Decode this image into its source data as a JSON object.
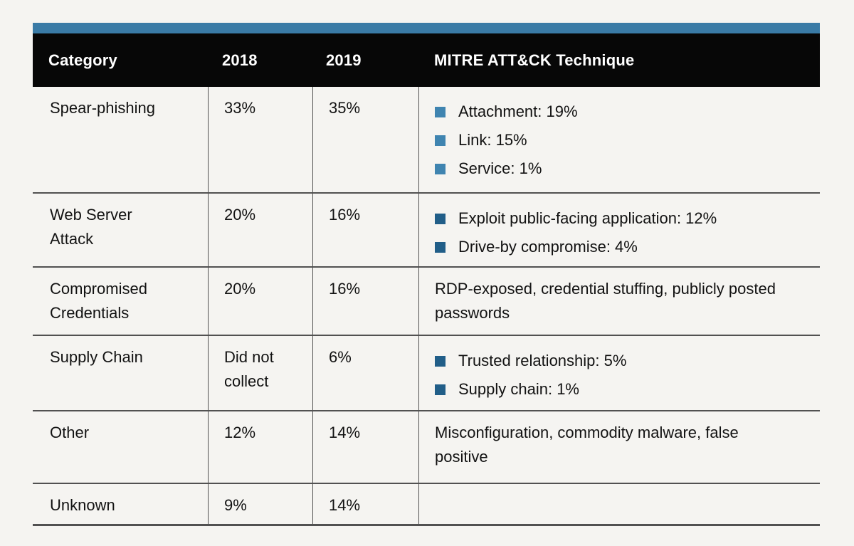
{
  "colors": {
    "page_bg": "#f5f4f1",
    "accent_bar": "#3a7ba6",
    "header_bg": "#070707",
    "header_text": "#ffffff",
    "grid_line": "#515151",
    "body_text": "#121212",
    "bullet_light": "#3f84b0",
    "bullet_dark": "#215e88"
  },
  "chart_data": {
    "type": "table",
    "columns": [
      "Category",
      "2018",
      "2019",
      "MITRE ATT&CK Technique"
    ],
    "rows": [
      {
        "category": "Spear-phishing",
        "pct_2018": "33%",
        "pct_2019": "35%",
        "bullet_variant": "light",
        "technique_bullets": [
          "Attachment: 19%",
          "Link: 15%",
          "Service: 1%"
        ],
        "technique_text": ""
      },
      {
        "category": "Web Server Attack",
        "pct_2018": "20%",
        "pct_2019": "16%",
        "bullet_variant": "dark",
        "technique_bullets": [
          "Exploit public-facing application: 12%",
          "Drive-by compromise: 4%"
        ],
        "technique_text": ""
      },
      {
        "category": "Compromised Credentials",
        "pct_2018": "20%",
        "pct_2019": "16%",
        "technique_bullets": [],
        "technique_text": "RDP-exposed, credential stuffing, publicly posted passwords"
      },
      {
        "category": "Supply Chain",
        "pct_2018": "Did not collect",
        "pct_2019": "6%",
        "bullet_variant": "dark",
        "technique_bullets": [
          "Trusted relationship: 5%",
          "Supply chain: 1%"
        ],
        "technique_text": ""
      },
      {
        "category": "Other",
        "pct_2018": "12%",
        "pct_2019": "14%",
        "technique_bullets": [],
        "technique_text": "Misconfiguration, commodity malware, false positive"
      },
      {
        "category": "Unknown",
        "pct_2018": "9%",
        "pct_2019": "14%",
        "technique_bullets": [],
        "technique_text": ""
      }
    ]
  }
}
